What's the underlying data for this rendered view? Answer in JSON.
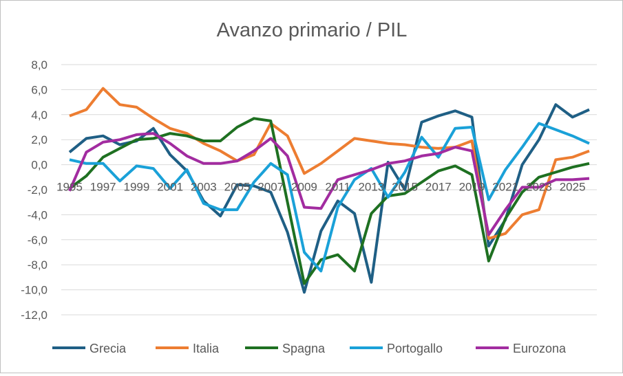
{
  "chart_data": {
    "type": "line",
    "title": "Avanzo primario / PIL",
    "xlabel": "",
    "ylabel": "",
    "ylim": [
      -12,
      8
    ],
    "yticks": [
      "8,0",
      "6,0",
      "4,0",
      "2,0",
      "0,0",
      "-2,0",
      "-4,0",
      "-6,0",
      "-8,0",
      "-10,0",
      "-12,0"
    ],
    "ytick_values": [
      8,
      6,
      4,
      2,
      0,
      -2,
      -4,
      -6,
      -8,
      -10,
      -12
    ],
    "x": [
      1995,
      1996,
      1997,
      1998,
      1999,
      2000,
      2001,
      2002,
      2003,
      2004,
      2005,
      2006,
      2007,
      2008,
      2009,
      2010,
      2011,
      2012,
      2013,
      2014,
      2015,
      2016,
      2017,
      2018,
      2019,
      2020,
      2021,
      2022,
      2023,
      2024,
      2025,
      2026
    ],
    "xtick_labels": [
      "1995",
      "1997",
      "1999",
      "2001",
      "2003",
      "2005",
      "2007",
      "2009",
      "2011",
      "2013",
      "2015",
      "2017",
      "2019",
      "2021",
      "2023",
      "2025"
    ],
    "grid": true,
    "legend_position": "bottom",
    "series": [
      {
        "name": "Grecia",
        "color": "#1f5f85",
        "values": [
          1.0,
          2.1,
          2.3,
          1.6,
          1.9,
          2.9,
          0.8,
          -0.5,
          -2.9,
          -4.1,
          -1.6,
          -1.7,
          -2.2,
          -5.4,
          -10.2,
          -5.3,
          -2.9,
          -3.9,
          -9.4,
          0.2,
          -2.0,
          3.4,
          3.9,
          4.3,
          3.8,
          -6.5,
          -4.4,
          0.0,
          2.0,
          4.8,
          3.8,
          4.4
        ]
      },
      {
        "name": "Italia",
        "color": "#ed7d31",
        "values": [
          3.9,
          4.4,
          6.1,
          4.8,
          4.6,
          3.7,
          2.9,
          2.5,
          1.7,
          1.1,
          0.3,
          0.8,
          3.3,
          2.3,
          -0.7,
          0.1,
          1.1,
          2.1,
          1.9,
          1.7,
          1.6,
          1.4,
          1.3,
          1.4,
          1.9,
          -5.9,
          -5.5,
          -4.0,
          -3.6,
          0.4,
          0.6,
          1.1
        ]
      },
      {
        "name": "Spagna",
        "color": "#1e7021",
        "values": [
          -1.9,
          -0.9,
          0.6,
          1.3,
          2.0,
          2.1,
          2.5,
          2.3,
          1.9,
          1.9,
          3.0,
          3.7,
          3.5,
          -3.0,
          -9.5,
          -7.6,
          -7.2,
          -8.5,
          -3.9,
          -2.5,
          -2.3,
          -1.4,
          -0.5,
          -0.1,
          -0.8,
          -7.7,
          -4.3,
          -2.2,
          -1.0,
          -0.6,
          -0.2,
          0.1
        ]
      },
      {
        "name": "Portogallo",
        "color": "#1aa1d8",
        "values": [
          0.4,
          0.1,
          0.1,
          -1.3,
          -0.1,
          -0.3,
          -1.9,
          -0.4,
          -3.1,
          -3.6,
          -3.6,
          -1.4,
          0.1,
          -0.8,
          -7.0,
          -8.5,
          -3.4,
          -1.2,
          -0.3,
          -2.6,
          -0.6,
          2.2,
          0.6,
          2.9,
          3.0,
          -2.8,
          -0.4,
          1.4,
          3.3,
          2.8,
          2.3,
          1.7
        ]
      },
      {
        "name": "Eurozona",
        "color": "#a22ca0",
        "values": [
          -2.1,
          1.0,
          1.8,
          2.0,
          2.4,
          2.5,
          1.7,
          0.7,
          0.1,
          0.1,
          0.3,
          1.1,
          2.1,
          0.7,
          -3.4,
          -3.5,
          -1.2,
          -0.8,
          -0.4,
          0.1,
          0.3,
          0.7,
          0.9,
          1.4,
          1.1,
          -5.6,
          -3.6,
          -1.8,
          -1.8,
          -1.2,
          -1.2,
          -1.1
        ]
      }
    ]
  }
}
